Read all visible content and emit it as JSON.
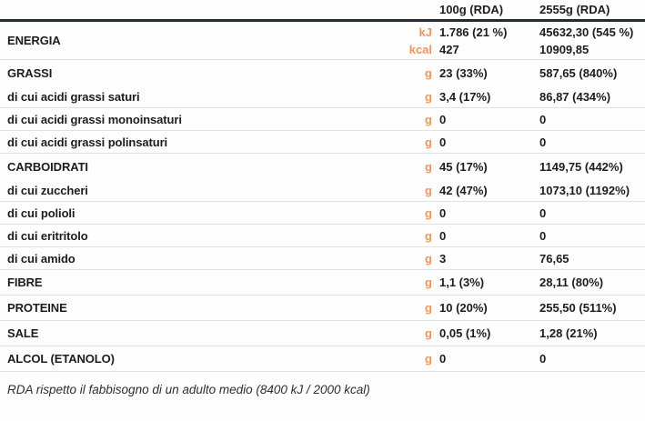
{
  "colors": {
    "accent_orange": "#f79455",
    "header_rule": "#212b36",
    "row_divider": "#e2e2e2",
    "text": "#1d1d1d"
  },
  "table": {
    "column_headers": {
      "per100": "100g (RDA)",
      "per2555": "2555g (RDA)"
    },
    "energia": {
      "label": "ENERGIA",
      "unit_kj": "kJ",
      "unit_kcal": "kcal",
      "kj_per100": "1.786 (21 %)",
      "kj_per2555": "45632,30 (545 %)",
      "kcal_per100": "427",
      "kcal_per2555": "10909,85"
    },
    "rows": [
      {
        "label": "GRASSI",
        "unit": "g",
        "per100": "23 (33%)",
        "per2555": "587,65 (840%)"
      },
      {
        "label": "di cui acidi grassi saturi",
        "unit": "g",
        "per100": "3,4 (17%)",
        "per2555": "86,87  (434%)"
      },
      {
        "label": "di cui acidi grassi monoinsaturi",
        "unit": "g",
        "per100": "0",
        "per2555": "0"
      },
      {
        "label": "di cui acidi grassi polinsaturi",
        "unit": "g",
        "per100": "0",
        "per2555": "0"
      },
      {
        "label": "CARBOIDRATI",
        "unit": "g",
        "per100": "45 (17%)",
        "per2555": "1149,75 (442%)"
      },
      {
        "label": "di cui zuccheri",
        "unit": "g",
        "per100": "42 (47%)",
        "per2555": "1073,10 (1192%)"
      },
      {
        "label": "di cui polioli",
        "unit": "g",
        "per100": "0",
        "per2555": "0"
      },
      {
        "label": "di cui eritritolo",
        "unit": "g",
        "per100": "0",
        "per2555": "0"
      },
      {
        "label": "di cui amido",
        "unit": "g",
        "per100": "3",
        "per2555": "76,65"
      },
      {
        "label": "FIBRE",
        "unit": "g",
        "per100": "1,1 (3%)",
        "per2555": "28,11 (80%)"
      },
      {
        "label": "PROTEINE",
        "unit": "g",
        "per100": "10 (20%)",
        "per2555": "255,50 (511%)"
      },
      {
        "label": "SALE",
        "unit": "g",
        "per100": "0,05 (1%)",
        "per2555": "1,28 (21%)"
      },
      {
        "label": "ALCOL (ETANOLO)",
        "unit": "g",
        "per100": "0",
        "per2555": "0"
      }
    ],
    "footnote": "RDA rispetto il fabbisogno di un adulto medio (8400 kJ / 2000 kcal)"
  }
}
